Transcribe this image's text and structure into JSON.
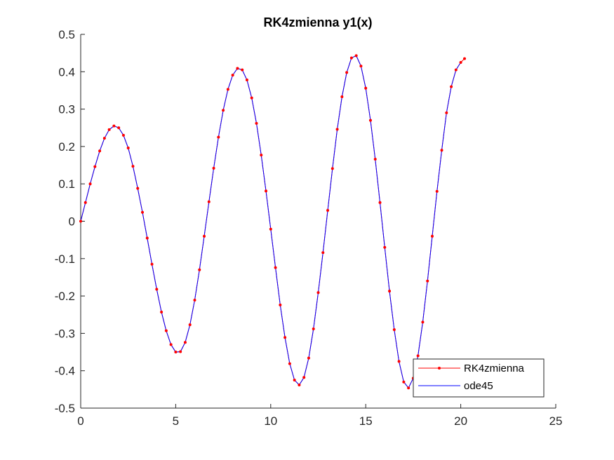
{
  "chart_data": {
    "type": "line",
    "title": "RK4zmienna y1(x)",
    "xlabel": "",
    "ylabel": "",
    "xlim": [
      0,
      25
    ],
    "ylim": [
      -0.5,
      0.5
    ],
    "xticks": [
      0,
      5,
      10,
      15,
      20,
      25
    ],
    "yticks": [
      -0.5,
      -0.4,
      -0.3,
      -0.2,
      -0.1,
      0,
      0.1,
      0.2,
      0.3,
      0.4,
      0.5
    ],
    "grid": false,
    "legend_position": "bottom-right",
    "series": [
      {
        "name": "RK4zmienna",
        "color": "#ff0000",
        "marker": "dot",
        "x": [
          0.0,
          0.25,
          0.5,
          0.75,
          1.0,
          1.25,
          1.5,
          1.75,
          2.0,
          2.25,
          2.5,
          2.75,
          3.0,
          3.25,
          3.5,
          3.75,
          4.0,
          4.25,
          4.5,
          4.75,
          5.0,
          5.25,
          5.5,
          5.75,
          6.0,
          6.25,
          6.5,
          6.75,
          7.0,
          7.25,
          7.5,
          7.75,
          8.0,
          8.25,
          8.5,
          8.75,
          9.0,
          9.25,
          9.5,
          9.75,
          10.0,
          10.25,
          10.5,
          10.75,
          11.0,
          11.25,
          11.5,
          11.75,
          12.0,
          12.25,
          12.5,
          12.75,
          13.0,
          13.25,
          13.5,
          13.75,
          14.0,
          14.25,
          14.5,
          14.75,
          15.0,
          15.25,
          15.5,
          15.75,
          16.0,
          16.25,
          16.5,
          16.75,
          17.0,
          17.25,
          17.5,
          17.75,
          18.0,
          18.25,
          18.5,
          18.75,
          19.0,
          19.25,
          19.5,
          19.75,
          20.0,
          20.2
        ],
        "y": [
          0.0,
          0.05,
          0.1,
          0.146,
          0.188,
          0.222,
          0.245,
          0.255,
          0.25,
          0.23,
          0.196,
          0.147,
          0.088,
          0.024,
          -0.045,
          -0.115,
          -0.182,
          -0.243,
          -0.293,
          -0.33,
          -0.35,
          -0.349,
          -0.324,
          -0.277,
          -0.211,
          -0.13,
          -0.04,
          0.052,
          0.142,
          0.225,
          0.297,
          0.353,
          0.391,
          0.409,
          0.405,
          0.378,
          0.33,
          0.262,
          0.177,
          0.081,
          -0.021,
          -0.124,
          -0.224,
          -0.311,
          -0.381,
          -0.425,
          -0.438,
          -0.418,
          -0.366,
          -0.288,
          -0.191,
          -0.084,
          0.029,
          0.141,
          0.246,
          0.333,
          0.398,
          0.437,
          0.443,
          0.415,
          0.356,
          0.27,
          0.166,
          0.05,
          -0.07,
          -0.187,
          -0.29,
          -0.375,
          -0.43,
          -0.446,
          -0.42,
          -0.36,
          -0.27,
          -0.16,
          -0.04,
          0.08,
          0.19,
          0.29,
          0.36,
          0.405,
          0.425,
          0.435
        ]
      },
      {
        "name": "ode45",
        "color": "#0000ff",
        "x": [
          0.0,
          0.25,
          0.5,
          0.75,
          1.0,
          1.25,
          1.5,
          1.75,
          2.0,
          2.25,
          2.5,
          2.75,
          3.0,
          3.25,
          3.5,
          3.75,
          4.0,
          4.25,
          4.5,
          4.75,
          5.0,
          5.25,
          5.5,
          5.75,
          6.0,
          6.25,
          6.5,
          6.75,
          7.0,
          7.25,
          7.5,
          7.75,
          8.0,
          8.25,
          8.5,
          8.75,
          9.0,
          9.25,
          9.5,
          9.75,
          10.0,
          10.25,
          10.5,
          10.75,
          11.0,
          11.25,
          11.5,
          11.75,
          12.0,
          12.25,
          12.5,
          12.75,
          13.0,
          13.25,
          13.5,
          13.75,
          14.0,
          14.25,
          14.5,
          14.75,
          15.0,
          15.25,
          15.5,
          15.75,
          16.0,
          16.25,
          16.5,
          16.75,
          17.0,
          17.25,
          17.5,
          17.75,
          18.0,
          18.25,
          18.5,
          18.75,
          19.0,
          19.25,
          19.5,
          19.75,
          20.0
        ],
        "y": [
          0.0,
          0.05,
          0.1,
          0.146,
          0.188,
          0.222,
          0.245,
          0.255,
          0.25,
          0.23,
          0.196,
          0.147,
          0.088,
          0.024,
          -0.045,
          -0.115,
          -0.182,
          -0.243,
          -0.293,
          -0.33,
          -0.35,
          -0.349,
          -0.324,
          -0.277,
          -0.211,
          -0.13,
          -0.04,
          0.052,
          0.142,
          0.225,
          0.297,
          0.353,
          0.391,
          0.409,
          0.405,
          0.378,
          0.33,
          0.262,
          0.177,
          0.081,
          -0.021,
          -0.124,
          -0.224,
          -0.311,
          -0.381,
          -0.425,
          -0.438,
          -0.418,
          -0.366,
          -0.288,
          -0.191,
          -0.084,
          0.029,
          0.141,
          0.246,
          0.333,
          0.398,
          0.437,
          0.443,
          0.415,
          0.356,
          0.27,
          0.166,
          0.05,
          -0.07,
          -0.187,
          -0.29,
          -0.375,
          -0.43,
          -0.446,
          -0.42,
          -0.36,
          -0.27,
          -0.16,
          -0.04,
          0.08,
          0.19,
          0.29,
          0.36,
          0.405,
          0.425
        ]
      }
    ]
  }
}
